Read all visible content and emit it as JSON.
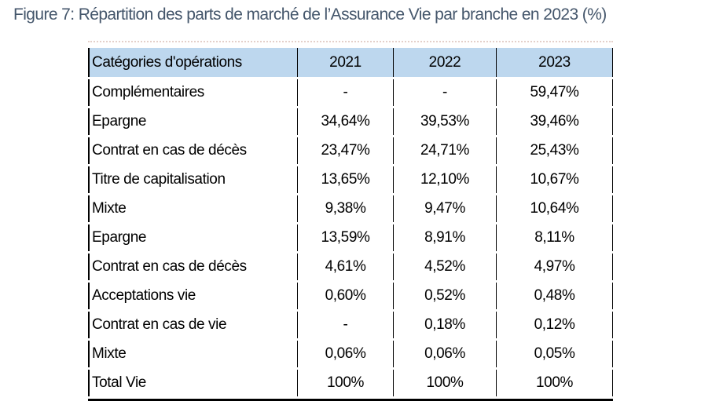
{
  "figure": {
    "title": "Figure 7: Répartition des parts de marché de l’Assurance Vie par branche en 2023 (%)",
    "title_color": "#44566b"
  },
  "table": {
    "header": [
      "Catégories d'opérations",
      "2021",
      "2022",
      "2023"
    ],
    "header_bg": "#BDD7EE",
    "border_color": "#000000",
    "rows": [
      {
        "label": "Complémentaires",
        "values": [
          "-",
          "-",
          "59,47%"
        ]
      },
      {
        "label": "Epargne",
        "values": [
          "34,64%",
          "39,53%",
          "39,46%"
        ]
      },
      {
        "label": "Contrat en cas de décès",
        "values": [
          "23,47%",
          "24,71%",
          "25,43%"
        ]
      },
      {
        "label": "Titre de capitalisation",
        "values": [
          "13,65%",
          "12,10%",
          "10,67%"
        ]
      },
      {
        "label": "Mixte",
        "values": [
          "9,38%",
          "9,47%",
          "10,64%"
        ]
      },
      {
        "label": "Epargne",
        "values": [
          "13,59%",
          "8,91%",
          "8,11%"
        ]
      },
      {
        "label": "Contrat en cas de décès",
        "values": [
          "4,61%",
          "4,52%",
          "4,97%"
        ]
      },
      {
        "label": "Acceptations vie",
        "values": [
          "0,60%",
          "0,52%",
          "0,48%"
        ]
      },
      {
        "label": "Contrat en cas de vie",
        "values": [
          "-",
          "0,18%",
          "0,12%"
        ]
      },
      {
        "label": "Mixte",
        "values": [
          "0,06%",
          "0,06%",
          "0,05%"
        ]
      },
      {
        "label": "Total Vie",
        "values": [
          "100%",
          "100%",
          "100%"
        ]
      }
    ]
  }
}
